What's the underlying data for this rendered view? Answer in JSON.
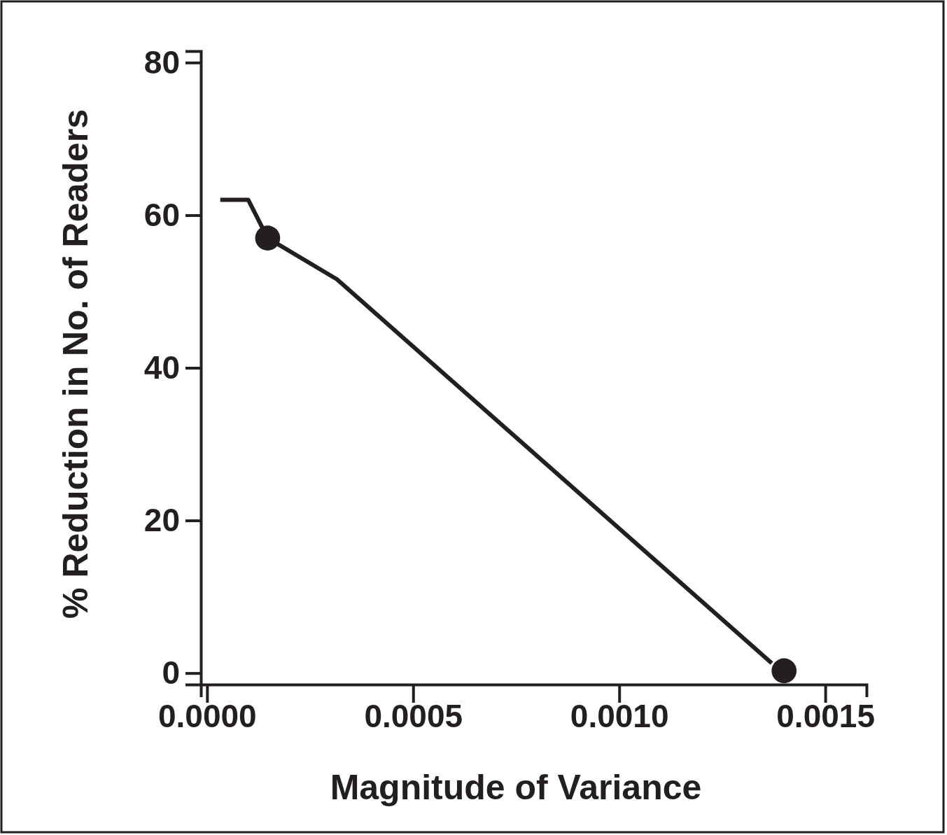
{
  "chart_data": {
    "type": "line",
    "xlabel": "Magnitude of Variance",
    "ylabel": "% Reduction in No. of Readers",
    "xlim": [
      -1.5e-05,
      0.0016
    ],
    "ylim": [
      -1.5,
      81.5
    ],
    "xticks": [
      {
        "value": 0,
        "label": "0.0000"
      },
      {
        "value": 0.0005,
        "label": "0.0005"
      },
      {
        "value": 0.001,
        "label": "0.0010"
      },
      {
        "value": 0.0015,
        "label": "0.0015"
      }
    ],
    "yticks": [
      0,
      20,
      40,
      60,
      80
    ],
    "grid": false,
    "series": [
      {
        "color": "#231f20",
        "x": [
          3.2e-05,
          0.0001,
          0.000147,
          0.000315,
          0.00137
        ],
        "values": [
          62,
          62,
          57,
          51.6,
          1.3
        ],
        "marker": "none"
      },
      {
        "type": "scatter",
        "color": "#231f20",
        "x": [
          0.000147,
          0.0014
        ],
        "values": [
          57,
          0.3
        ],
        "marker": "circle"
      }
    ]
  }
}
